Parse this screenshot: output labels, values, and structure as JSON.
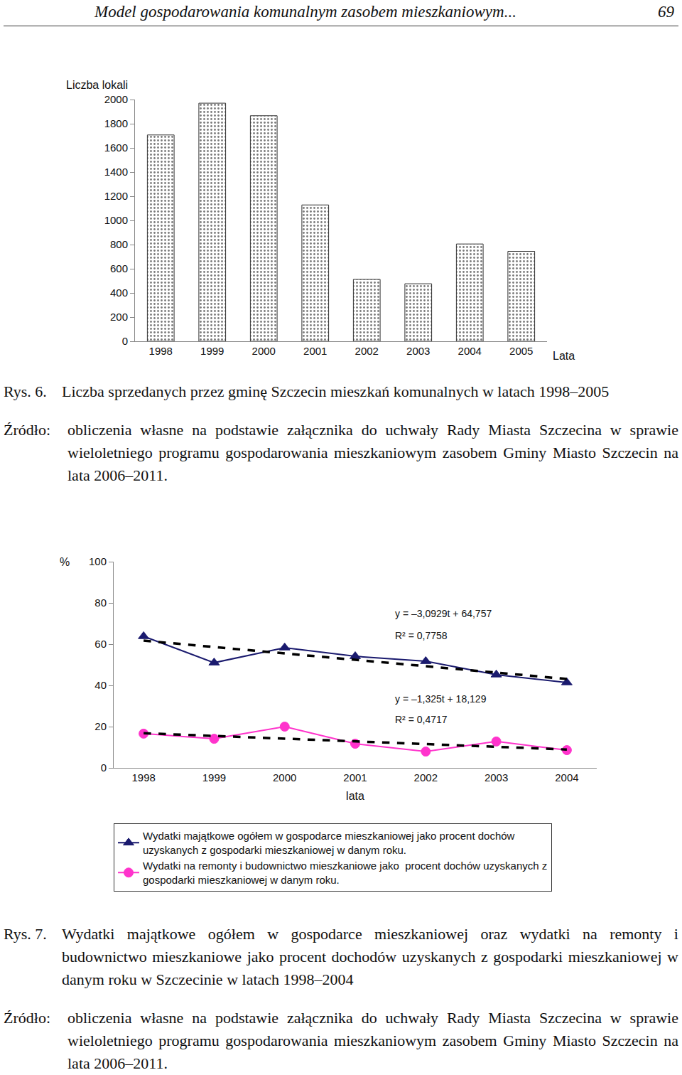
{
  "header": {
    "title": "Model gospodarowania komunalnym zasobem mieszkaniowym...",
    "page": "69"
  },
  "chart_data": [
    {
      "type": "bar",
      "y_label": "Liczba lokali",
      "x_label": "Lata",
      "categories": [
        "1998",
        "1999",
        "2000",
        "2001",
        "2002",
        "2003",
        "2004",
        "2005"
      ],
      "values": [
        1707,
        1970,
        1866,
        1128,
        512,
        476,
        805,
        744
      ],
      "color": "#efefef",
      "marker": "dots",
      "ylim": [
        0,
        2000
      ],
      "yticks": [
        0,
        200,
        400,
        600,
        800,
        1000,
        1200,
        1400,
        1600,
        1800,
        2000
      ],
      "grid": false
    },
    {
      "type": "line",
      "y_label": "%",
      "x_label": "lata",
      "categories": [
        "1998",
        "1999",
        "2000",
        "2001",
        "2002",
        "2003",
        "2004"
      ],
      "ylim": [
        0,
        100
      ],
      "yticks": [
        0,
        20,
        40,
        60,
        80,
        100
      ],
      "grid": false,
      "legend": "bottom",
      "series": [
        {
          "name": "Wydatki majątkowe ogółem w gospodarce mieszkaniowej jako procent dochów uzyskanych z gospodarki mieszkaniowej w danym roku.",
          "color": "#1a1a6e",
          "marker": "triangle-up",
          "line_style": "solid",
          "values": [
            63.8,
            51.0,
            58.3,
            54.1,
            51.7,
            45.2,
            41.4
          ]
        },
        {
          "name": "Wydatki na remonty i budownictwo mieszkaniowe jako  procent dochów uzyskanych z gospodarki mieszkaniowej w danym roku.",
          "color": "#ff33cc",
          "marker": "circle",
          "line_style": "solid",
          "values": [
            16.6,
            14.1,
            20.0,
            11.7,
            7.9,
            12.8,
            8.6
          ]
        },
        {
          "color": "#000000",
          "line_style": "dash",
          "values": [
            61.7,
            58.6,
            55.5,
            52.4,
            49.3,
            46.2,
            43.1
          ]
        },
        {
          "color": "#000000",
          "line_style": "dash",
          "values": [
            16.8,
            15.5,
            14.2,
            12.8,
            11.5,
            10.2,
            8.9
          ]
        }
      ],
      "annotations": [
        "y = –3,0929t + 64,757",
        "R² = 0,7758",
        "y = –1,325t + 18,129",
        "R² = 0,4717"
      ]
    }
  ],
  "captions": [
    {
      "label": "Rys. 6.",
      "text": "Liczba sprzedanych przez gminę Szczecin mieszkań komunalnych w latach 1998–2005",
      "source_label": "Źródło:",
      "source": "obliczenia własne na podstawie załącznika do uchwały Rady Miasta Szczecina w sprawie wieloletniego programu gospodarowania mieszkaniowym zasobem Gminy Miasto Szczecin na lata 2006–2011."
    },
    {
      "label": "Rys. 7.",
      "text": "Wydatki majątkowe ogółem w gospodarce mieszkaniowej oraz wydatki na remonty i budownictwo mieszkaniowe jako procent dochodów uzyskanych z gospodarki mieszkaniowej w danym roku w Szczecinie w latach 1998–2004",
      "source_label": "Źródło:",
      "source": "obliczenia własne na podstawie załącznika do uchwały Rady Miasta Szczecina w sprawie wieloletniego programu gospodarowania mieszkaniowym zasobem Gminy Miasto Szczecin na lata 2006–2011."
    }
  ]
}
